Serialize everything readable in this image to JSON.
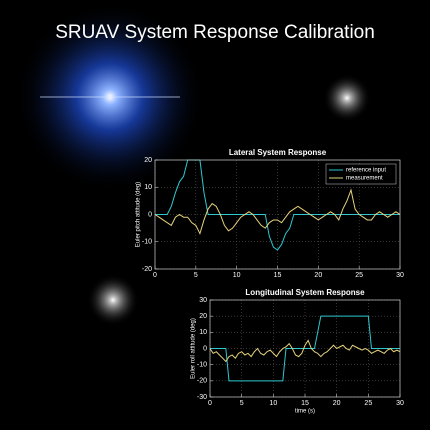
{
  "title": "SRUAV System Response Calibration",
  "chart_data": [
    {
      "type": "line",
      "title": "Lateral System Response",
      "ylabel": "Euler pitch attitude (deg)",
      "xlim": [
        0,
        30
      ],
      "xticks": [
        0,
        5,
        10,
        15,
        20,
        25,
        30
      ],
      "ylim": [
        -20,
        20
      ],
      "yticks": [
        -20,
        -10,
        0,
        10,
        20
      ],
      "grid": true,
      "legend": "upper right",
      "x": [
        0,
        0.5,
        1,
        1.5,
        2,
        2.5,
        3,
        3.5,
        4,
        4.5,
        5,
        5.5,
        6,
        6.5,
        7,
        7.5,
        8,
        8.5,
        9,
        9.5,
        10,
        10.5,
        11,
        11.5,
        12,
        12.5,
        13,
        13.5,
        14,
        14.5,
        15,
        15.5,
        16,
        16.5,
        17,
        17.5,
        18,
        18.5,
        19,
        19.5,
        20,
        20.5,
        21,
        21.5,
        22,
        22.5,
        23,
        23.5,
        24,
        24.5,
        25,
        25.5,
        26,
        26.5,
        27,
        27.5,
        28,
        28.5,
        29,
        29.5,
        30
      ],
      "series": [
        {
          "name": "reference input",
          "color": "#2ec8d0",
          "values": [
            0,
            0,
            0,
            0,
            3,
            8,
            12,
            14,
            20,
            20,
            20,
            20,
            8,
            0,
            0,
            0,
            0,
            0,
            0,
            0,
            0,
            0,
            0,
            0,
            0,
            0,
            0,
            0,
            -8,
            -12,
            -13,
            -11,
            -7,
            -5,
            0,
            0,
            0,
            0,
            0,
            0,
            0,
            0,
            0,
            0,
            0,
            0,
            0,
            0,
            0,
            0,
            0,
            0,
            0,
            0,
            0,
            0,
            0,
            0,
            0,
            0,
            0
          ]
        },
        {
          "name": "measurement",
          "color": "#e6d27c",
          "values": [
            0,
            -1,
            -2,
            -3,
            -4,
            -1,
            0,
            -1,
            -1,
            -3,
            -4,
            -7,
            -2,
            2,
            4,
            3,
            0,
            -4,
            -6,
            -5,
            -3,
            -1,
            0,
            1,
            0,
            -2,
            -4,
            -5,
            -3,
            -2,
            -2,
            -3,
            -1,
            1,
            2,
            3,
            2,
            1,
            0,
            -1,
            -2,
            -1,
            0,
            1,
            0,
            -2,
            2,
            5,
            9,
            2,
            0,
            -1,
            -2,
            -2,
            0,
            1,
            0,
            -1,
            0,
            1,
            0
          ]
        }
      ]
    },
    {
      "type": "line",
      "title": "Longitudinal System Response",
      "ylabel": "Euler roll attitude (deg)",
      "xlabel": "time (s)",
      "xlim": [
        0,
        30
      ],
      "xticks": [
        0,
        5,
        10,
        15,
        20,
        25,
        30
      ],
      "ylim": [
        -30,
        30
      ],
      "yticks": [
        -30,
        -20,
        -10,
        0,
        10,
        20,
        30
      ],
      "grid": true,
      "x": [
        0,
        0.5,
        1,
        1.5,
        2,
        2.5,
        3,
        3.5,
        4,
        4.5,
        5,
        5.5,
        6,
        6.5,
        7,
        7.5,
        8,
        8.5,
        9,
        9.5,
        10,
        10.5,
        11,
        11.5,
        12,
        12.5,
        13,
        13.5,
        14,
        14.5,
        15,
        15.5,
        16,
        16.5,
        17,
        17.5,
        18,
        18.5,
        19,
        19.5,
        20,
        20.5,
        21,
        21.5,
        22,
        22.5,
        23,
        23.5,
        24,
        24.5,
        25,
        25.5,
        26,
        26.5,
        27,
        27.5,
        28,
        28.5,
        29,
        29.5,
        30
      ],
      "series": [
        {
          "name": "reference input",
          "color": "#2ec8d0",
          "values": [
            0,
            0,
            0,
            0,
            0,
            0,
            -20,
            -20,
            -20,
            -20,
            -20,
            -20,
            -20,
            -20,
            -20,
            -20,
            -20,
            -20,
            -20,
            -20,
            -20,
            -20,
            -20,
            -20,
            0,
            0,
            0,
            0,
            0,
            0,
            0,
            0,
            0,
            0,
            10,
            20,
            20,
            20,
            20,
            20,
            20,
            20,
            20,
            20,
            20,
            20,
            20,
            20,
            20,
            20,
            20,
            0,
            0,
            0,
            0,
            0,
            0,
            0,
            0,
            0,
            0
          ]
        },
        {
          "name": "measurement",
          "color": "#e6d27c",
          "values": [
            0,
            -3,
            -2,
            -4,
            -6,
            -8,
            -5,
            -4,
            -6,
            -3,
            -2,
            -4,
            -3,
            -5,
            -2,
            0,
            -3,
            -4,
            -2,
            -1,
            -3,
            -5,
            -2,
            0,
            1,
            3,
            0,
            -4,
            -5,
            -3,
            2,
            5,
            0,
            -2,
            -3,
            -5,
            -3,
            -2,
            0,
            2,
            0,
            1,
            2,
            0,
            -1,
            2,
            1,
            0,
            -1,
            0,
            -1,
            -3,
            -2,
            -1,
            -2,
            -3,
            -1,
            0,
            -2,
            -1,
            -2
          ]
        }
      ]
    }
  ]
}
